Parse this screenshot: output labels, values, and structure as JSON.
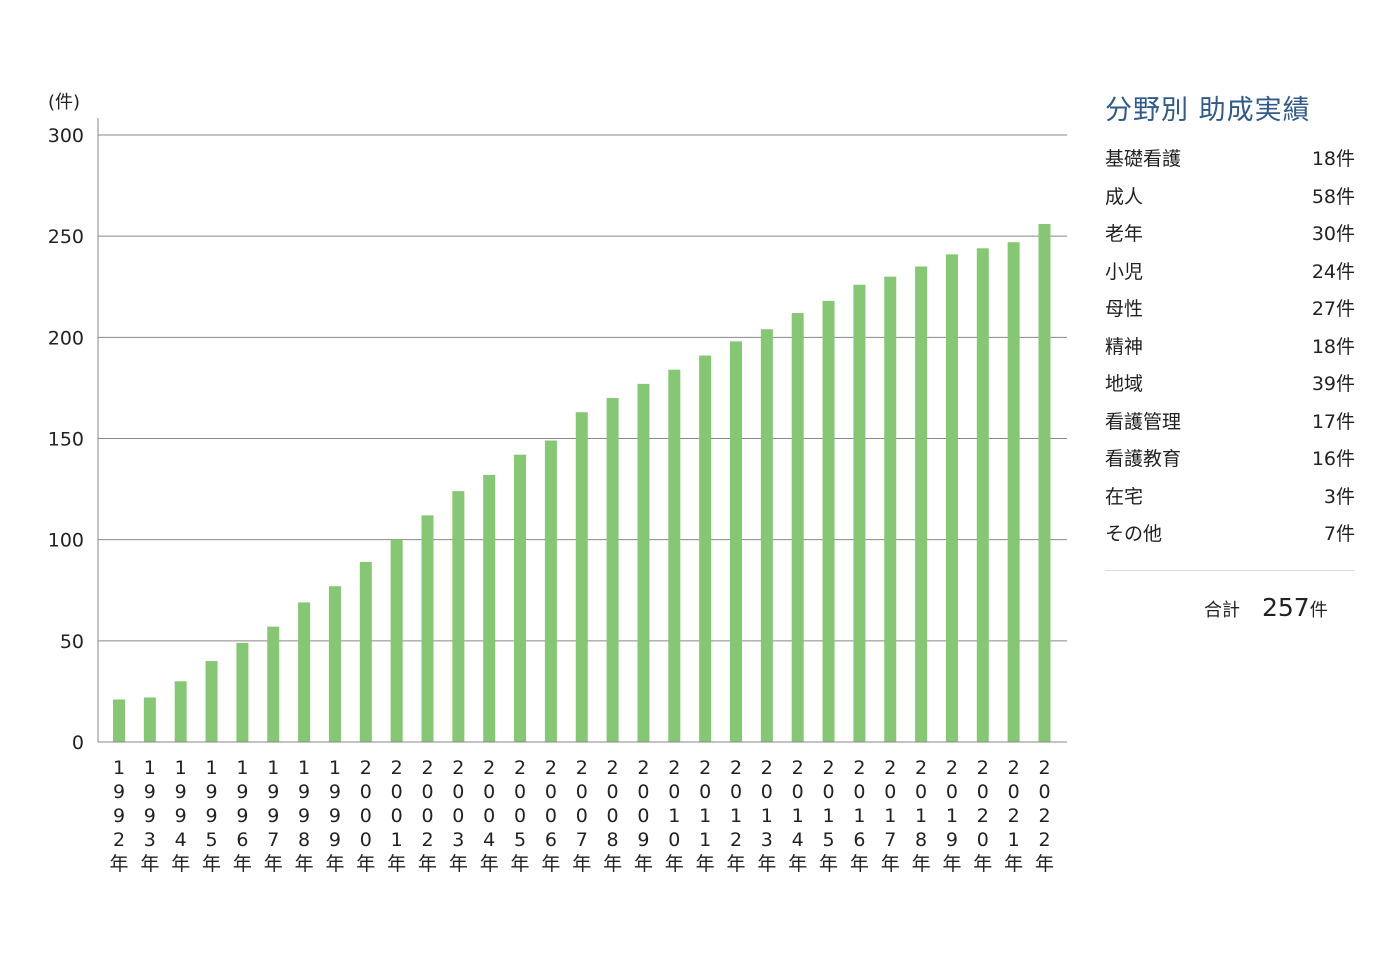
{
  "chart_data": {
    "type": "bar",
    "unit_label": "(件)",
    "categories": [
      "1992年",
      "1993年",
      "1994年",
      "1995年",
      "1996年",
      "1997年",
      "1998年",
      "1999年",
      "2000年",
      "2001年",
      "2002年",
      "2003年",
      "2004年",
      "2005年",
      "2006年",
      "2007年",
      "2008年",
      "2009年",
      "2010年",
      "2011年",
      "2012年",
      "2013年",
      "2014年",
      "2015年",
      "2016年",
      "2017年",
      "2018年",
      "2019年",
      "2020年",
      "2021年",
      "2022年"
    ],
    "values": [
      21,
      22,
      30,
      40,
      49,
      57,
      69,
      77,
      89,
      100,
      112,
      124,
      132,
      142,
      149,
      163,
      170,
      177,
      184,
      191,
      198,
      204,
      212,
      218,
      226,
      230,
      235,
      241,
      244,
      247,
      256
    ],
    "ylim": [
      0,
      300
    ],
    "yticks": [
      "0",
      "50",
      "100",
      "150",
      "200",
      "250",
      "300"
    ],
    "grid": true,
    "bar_color": "#86c774"
  },
  "panel": {
    "title": "分野別 助成実績",
    "items": [
      {
        "label": "基礎看護",
        "value": "18件"
      },
      {
        "label": "成人",
        "value": "58件"
      },
      {
        "label": "老年",
        "value": "30件"
      },
      {
        "label": "小児",
        "value": "24件"
      },
      {
        "label": "母性",
        "value": "27件"
      },
      {
        "label": "精神",
        "value": "18件"
      },
      {
        "label": "地域",
        "value": "39件"
      },
      {
        "label": "看護管理",
        "value": "17件"
      },
      {
        "label": "看護教育",
        "value": "16件"
      },
      {
        "label": "在宅",
        "value": "3件"
      },
      {
        "label": "その他",
        "value": "7件"
      }
    ],
    "total_label": "合計",
    "total_value": "257",
    "total_unit": "件"
  }
}
